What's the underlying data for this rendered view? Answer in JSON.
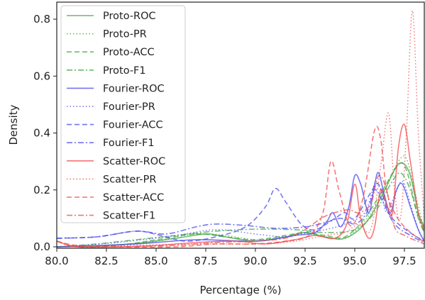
{
  "chart_data": {
    "type": "line",
    "title": "",
    "xlabel": "Percentage (%)",
    "ylabel": "Density",
    "xlim": [
      80.0,
      98.5
    ],
    "ylim": [
      -0.005,
      0.86
    ],
    "xticks": [
      "80.0",
      "82.5",
      "85.0",
      "87.5",
      "90.0",
      "92.5",
      "95.0",
      "97.5"
    ],
    "yticks": [
      "0.0",
      "0.2",
      "0.4",
      "0.6",
      "0.8"
    ],
    "grid": false,
    "legend_position": "top-left",
    "series": [
      {
        "name": "Proto-ROC",
        "color": "#3aa33a",
        "style": "solid",
        "points": [
          [
            80,
            0.0
          ],
          [
            82,
            0.003
          ],
          [
            84,
            0.012
          ],
          [
            86,
            0.03
          ],
          [
            87.5,
            0.045
          ],
          [
            88.5,
            0.035
          ],
          [
            90,
            0.02
          ],
          [
            91.5,
            0.035
          ],
          [
            92.5,
            0.05
          ],
          [
            93.5,
            0.035
          ],
          [
            94.5,
            0.03
          ],
          [
            95.5,
            0.08
          ],
          [
            96.3,
            0.17
          ],
          [
            97,
            0.27
          ],
          [
            97.4,
            0.295
          ],
          [
            97.8,
            0.25
          ],
          [
            98.2,
            0.12
          ],
          [
            98.5,
            0.07
          ]
        ]
      },
      {
        "name": "Proto-PR",
        "color": "#3aa33a",
        "style": "dotted",
        "points": [
          [
            80,
            0.0
          ],
          [
            83,
            0.005
          ],
          [
            85,
            0.02
          ],
          [
            87,
            0.045
          ],
          [
            88.5,
            0.04
          ],
          [
            90,
            0.025
          ],
          [
            91.5,
            0.035
          ],
          [
            92.5,
            0.045
          ],
          [
            93.5,
            0.035
          ],
          [
            94.5,
            0.03
          ],
          [
            95.5,
            0.09
          ],
          [
            96.5,
            0.2
          ],
          [
            97.2,
            0.3
          ],
          [
            97.6,
            0.31
          ],
          [
            98,
            0.2
          ],
          [
            98.5,
            0.06
          ]
        ]
      },
      {
        "name": "Proto-ACC",
        "color": "#3aa33a",
        "style": "dashed",
        "points": [
          [
            80,
            0.0
          ],
          [
            83,
            0.005
          ],
          [
            85,
            0.025
          ],
          [
            87,
            0.045
          ],
          [
            88.5,
            0.035
          ],
          [
            90,
            0.025
          ],
          [
            91.5,
            0.04
          ],
          [
            92.5,
            0.05
          ],
          [
            93.5,
            0.04
          ],
          [
            94.5,
            0.035
          ],
          [
            95.5,
            0.1
          ],
          [
            96.5,
            0.21
          ],
          [
            97.2,
            0.29
          ],
          [
            97.6,
            0.27
          ],
          [
            98.1,
            0.13
          ],
          [
            98.5,
            0.05
          ]
        ]
      },
      {
        "name": "Proto-F1",
        "color": "#3aa33a",
        "style": "dashdot",
        "points": [
          [
            80,
            0.0
          ],
          [
            82,
            0.01
          ],
          [
            84,
            0.025
          ],
          [
            86,
            0.04
          ],
          [
            88,
            0.055
          ],
          [
            90,
            0.062
          ],
          [
            92,
            0.06
          ],
          [
            93.5,
            0.05
          ],
          [
            95,
            0.06
          ],
          [
            96,
            0.12
          ],
          [
            96.8,
            0.22
          ],
          [
            97.3,
            0.26
          ],
          [
            97.8,
            0.2
          ],
          [
            98.2,
            0.1
          ],
          [
            98.5,
            0.05
          ]
        ]
      },
      {
        "name": "Fourier-ROC",
        "color": "#4444ee",
        "style": "solid",
        "points": [
          [
            80,
            0.0
          ],
          [
            84,
            0.01
          ],
          [
            87,
            0.025
          ],
          [
            90,
            0.02
          ],
          [
            92,
            0.04
          ],
          [
            93,
            0.05
          ],
          [
            93.6,
            0.09
          ],
          [
            93.9,
            0.12
          ],
          [
            94.3,
            0.07
          ],
          [
            94.7,
            0.14
          ],
          [
            95,
            0.25
          ],
          [
            95.3,
            0.22
          ],
          [
            95.7,
            0.12
          ],
          [
            96,
            0.22
          ],
          [
            96.2,
            0.26
          ],
          [
            96.5,
            0.18
          ],
          [
            96.8,
            0.12
          ],
          [
            97.1,
            0.2
          ],
          [
            97.4,
            0.22
          ],
          [
            97.8,
            0.14
          ],
          [
            98.2,
            0.06
          ],
          [
            98.5,
            0.02
          ]
        ]
      },
      {
        "name": "Fourier-PR",
        "color": "#4444ee",
        "style": "dotted",
        "points": [
          [
            80,
            0.0
          ],
          [
            83,
            0.015
          ],
          [
            86,
            0.04
          ],
          [
            88,
            0.06
          ],
          [
            90,
            0.045
          ],
          [
            91.5,
            0.035
          ],
          [
            92.5,
            0.05
          ],
          [
            93.5,
            0.06
          ],
          [
            94.5,
            0.08
          ],
          [
            95.5,
            0.12
          ],
          [
            96,
            0.22
          ],
          [
            96.3,
            0.2
          ],
          [
            96.6,
            0.12
          ],
          [
            97,
            0.18
          ],
          [
            97.4,
            0.23
          ],
          [
            97.8,
            0.15
          ],
          [
            98.2,
            0.06
          ],
          [
            98.5,
            0.02
          ]
        ]
      },
      {
        "name": "Fourier-ACC",
        "color": "#4444ee",
        "style": "dashed",
        "points": [
          [
            80,
            0.03
          ],
          [
            82,
            0.035
          ],
          [
            84,
            0.055
          ],
          [
            85.2,
            0.04
          ],
          [
            86.5,
            0.02
          ],
          [
            88,
            0.035
          ],
          [
            89.5,
            0.07
          ],
          [
            90.5,
            0.14
          ],
          [
            91,
            0.205
          ],
          [
            91.5,
            0.16
          ],
          [
            92.3,
            0.08
          ],
          [
            93,
            0.06
          ],
          [
            94,
            0.1
          ],
          [
            94.5,
            0.12
          ],
          [
            95,
            0.1
          ],
          [
            95.8,
            0.19
          ],
          [
            96.2,
            0.22
          ],
          [
            96.7,
            0.12
          ],
          [
            97.2,
            0.08
          ],
          [
            98,
            0.04
          ],
          [
            98.5,
            0.02
          ]
        ]
      },
      {
        "name": "Fourier-F1",
        "color": "#4444ee",
        "style": "dashdot",
        "points": [
          [
            80,
            0.03
          ],
          [
            82,
            0.035
          ],
          [
            84,
            0.055
          ],
          [
            85.5,
            0.045
          ],
          [
            87,
            0.07
          ],
          [
            88,
            0.08
          ],
          [
            89.5,
            0.075
          ],
          [
            91,
            0.065
          ],
          [
            92.5,
            0.07
          ],
          [
            93.5,
            0.085
          ],
          [
            94.3,
            0.1
          ],
          [
            95,
            0.08
          ],
          [
            95.6,
            0.12
          ],
          [
            96,
            0.2
          ],
          [
            96.4,
            0.16
          ],
          [
            97,
            0.08
          ],
          [
            97.8,
            0.04
          ],
          [
            98.5,
            0.015
          ]
        ]
      },
      {
        "name": "Scatter-ROC",
        "color": "#f04545",
        "style": "solid",
        "points": [
          [
            80,
            0.02
          ],
          [
            81,
            0.0
          ],
          [
            83,
            0.0
          ],
          [
            85,
            0.005
          ],
          [
            87,
            0.015
          ],
          [
            89,
            0.02
          ],
          [
            90.5,
            0.01
          ],
          [
            92,
            0.025
          ],
          [
            93,
            0.04
          ],
          [
            94,
            0.03
          ],
          [
            94.6,
            0.08
          ],
          [
            95,
            0.22
          ],
          [
            95.3,
            0.1
          ],
          [
            95.7,
            0.03
          ],
          [
            96,
            0.07
          ],
          [
            96.3,
            0.2
          ],
          [
            96.6,
            0.15
          ],
          [
            96.9,
            0.12
          ],
          [
            97.2,
            0.35
          ],
          [
            97.5,
            0.43
          ],
          [
            97.8,
            0.3
          ],
          [
            98.2,
            0.12
          ],
          [
            98.5,
            0.06
          ]
        ]
      },
      {
        "name": "Scatter-PR",
        "color": "#f04545",
        "style": "dotted",
        "points": [
          [
            80,
            0.0
          ],
          [
            84,
            0.005
          ],
          [
            87,
            0.01
          ],
          [
            90,
            0.01
          ],
          [
            92,
            0.02
          ],
          [
            93.5,
            0.04
          ],
          [
            94.5,
            0.05
          ],
          [
            95.2,
            0.08
          ],
          [
            95.8,
            0.06
          ],
          [
            96.3,
            0.28
          ],
          [
            96.7,
            0.47
          ],
          [
            97,
            0.2
          ],
          [
            97.3,
            0.1
          ],
          [
            97.6,
            0.4
          ],
          [
            97.9,
            0.83
          ],
          [
            98.2,
            0.4
          ],
          [
            98.5,
            0.1
          ]
        ]
      },
      {
        "name": "Scatter-ACC",
        "color": "#f04545",
        "style": "dashed",
        "points": [
          [
            80,
            0.02
          ],
          [
            81,
            0.005
          ],
          [
            83,
            0.0
          ],
          [
            86,
            0.0
          ],
          [
            88,
            0.01
          ],
          [
            90,
            0.01
          ],
          [
            91.5,
            0.02
          ],
          [
            92.7,
            0.04
          ],
          [
            93.4,
            0.12
          ],
          [
            93.8,
            0.3
          ],
          [
            94.2,
            0.2
          ],
          [
            94.7,
            0.08
          ],
          [
            95.1,
            0.1
          ],
          [
            95.5,
            0.2
          ],
          [
            96,
            0.41
          ],
          [
            96.3,
            0.38
          ],
          [
            96.6,
            0.2
          ],
          [
            97,
            0.12
          ],
          [
            97.5,
            0.07
          ],
          [
            98.2,
            0.03
          ],
          [
            98.5,
            0.02
          ]
        ]
      },
      {
        "name": "Scatter-F1",
        "color": "#f04545",
        "style": "dashdot",
        "points": [
          [
            80,
            0.02
          ],
          [
            81,
            0.0
          ],
          [
            83,
            0.0
          ],
          [
            86,
            0.005
          ],
          [
            88,
            0.015
          ],
          [
            90,
            0.02
          ],
          [
            91.5,
            0.03
          ],
          [
            92.5,
            0.06
          ],
          [
            93.3,
            0.1
          ],
          [
            94,
            0.12
          ],
          [
            94.7,
            0.13
          ],
          [
            95.2,
            0.12
          ],
          [
            95.8,
            0.15
          ],
          [
            96.2,
            0.25
          ],
          [
            96.6,
            0.2
          ],
          [
            97,
            0.07
          ],
          [
            97.5,
            0.04
          ],
          [
            98.5,
            0.01
          ]
        ]
      }
    ]
  }
}
